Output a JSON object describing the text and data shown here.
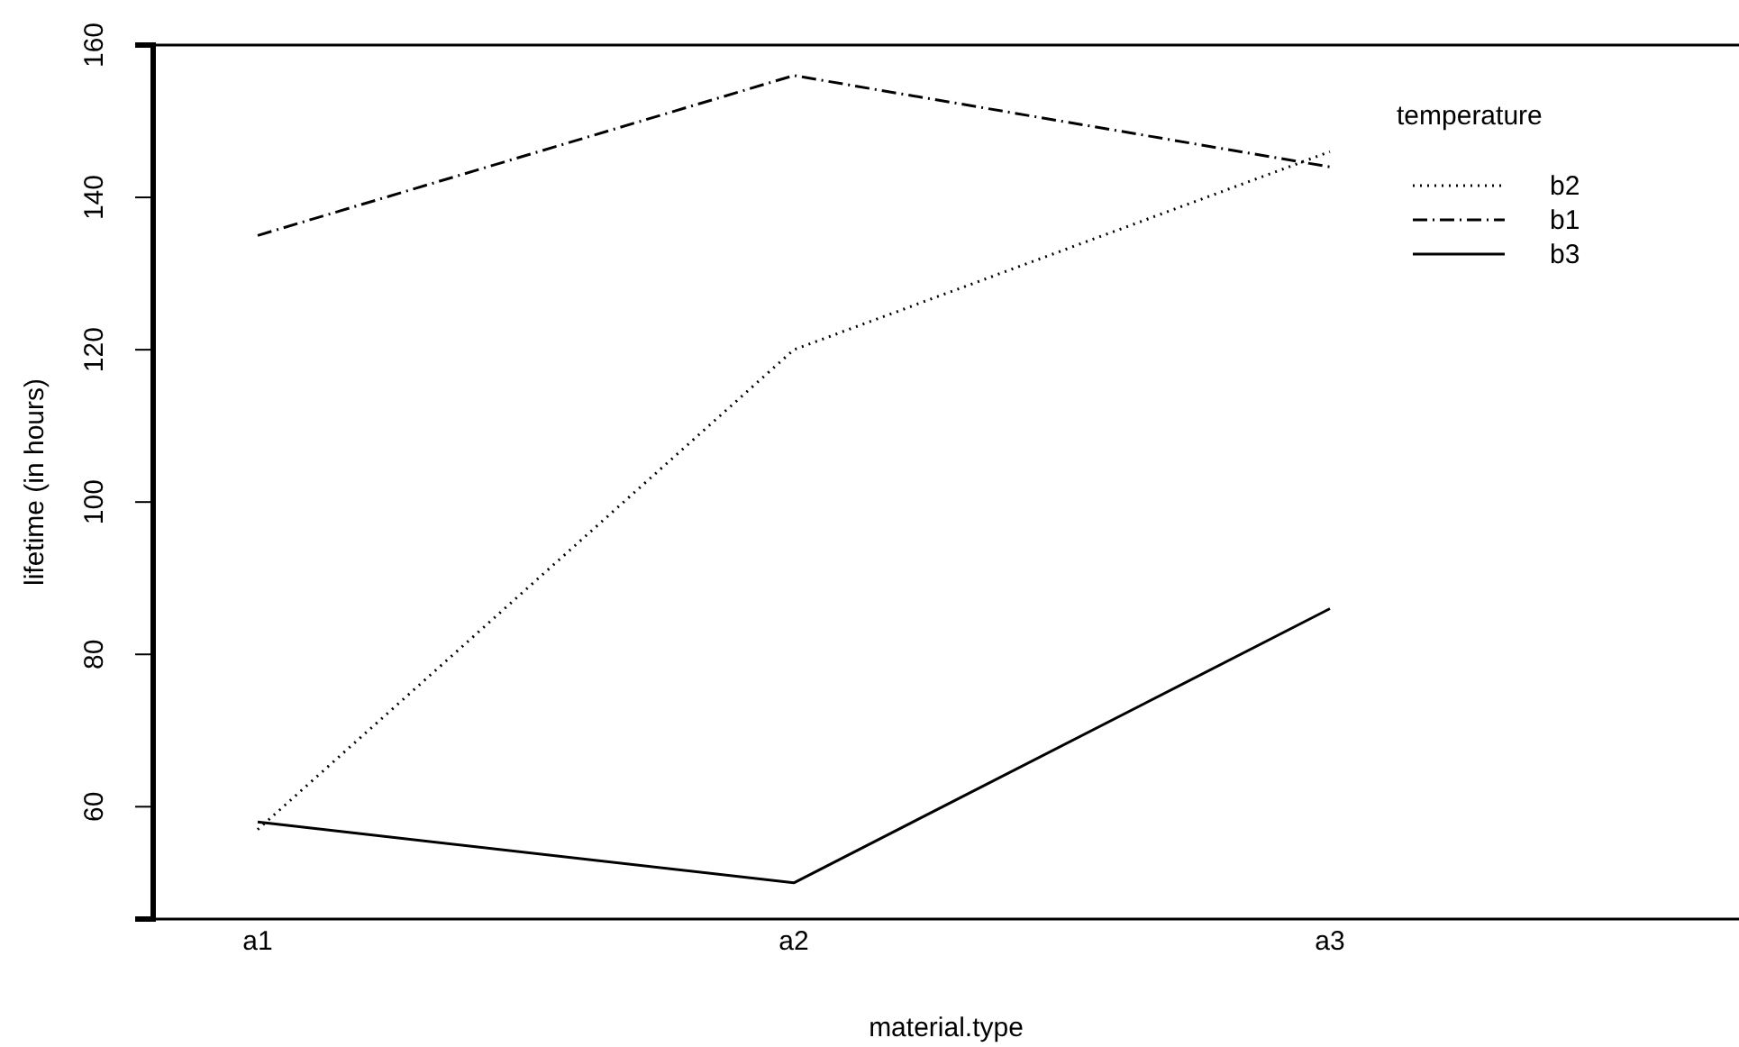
{
  "chart_data": {
    "type": "line",
    "xlabel": "material.type",
    "ylabel": "lifetime (in hours)",
    "legend_title": "temperature",
    "legend": "top right",
    "categories": [
      "a1",
      "a2",
      "a3"
    ],
    "ylim": [
      45.25,
      160
    ],
    "yticks": [
      60,
      80,
      100,
      120,
      140,
      160
    ],
    "series": [
      {
        "name": "b2",
        "color": "#000000",
        "line_style": "dotted",
        "values": [
          57,
          120,
          146
        ]
      },
      {
        "name": "b1",
        "color": "#000000",
        "line_style": "dashdot",
        "values": [
          135,
          156,
          144
        ]
      },
      {
        "name": "b3",
        "color": "#000000",
        "line_style": "solid",
        "values": [
          58,
          50,
          86
        ]
      }
    ]
  }
}
